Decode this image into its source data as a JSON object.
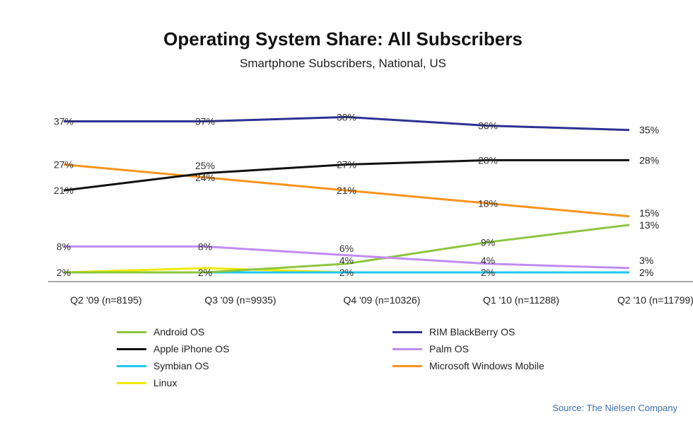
{
  "chart_data": {
    "type": "line",
    "title": "Operating System Share: All Subscribers",
    "subtitle": "Smartphone Subscribers, National, US",
    "categories": [
      "Q2 '09 (n=8195)",
      "Q3 '09 (n=9935)",
      "Q4 '09 (n=10326)",
      "Q1 '10 (n=11288)",
      "Q2 '10 (n=11799)"
    ],
    "ylim": [
      0,
      40
    ],
    "grid": false,
    "legend_position": "bottom",
    "series": [
      {
        "name": "Android OS",
        "color": "#8cc63f",
        "values": [
          2,
          2,
          4,
          9,
          13
        ],
        "labels": [
          false,
          false,
          true,
          true,
          true
        ]
      },
      {
        "name": "RIM BlackBerry OS",
        "color": "#2e3192",
        "values": [
          37,
          37,
          38,
          36,
          35
        ],
        "labels": [
          true,
          true,
          true,
          true,
          true
        ]
      },
      {
        "name": "Apple iPhone OS",
        "color": "#111111",
        "values": [
          21,
          25,
          27,
          28,
          28
        ],
        "labels": [
          true,
          true,
          true,
          true,
          true
        ]
      },
      {
        "name": "Palm OS",
        "color": "#c08cf0",
        "values": [
          8,
          8,
          6,
          4,
          3
        ],
        "labels": [
          true,
          true,
          true,
          true,
          true
        ]
      },
      {
        "name": "Symbian OS",
        "color": "#1ec8f0",
        "values": [
          2,
          2,
          2,
          2,
          2
        ],
        "labels": [
          true,
          true,
          true,
          true,
          true
        ]
      },
      {
        "name": "Microsoft Windows Mobile",
        "color": "#f7941d",
        "values": [
          27,
          24,
          21,
          18,
          15
        ],
        "labels": [
          true,
          true,
          true,
          true,
          true
        ]
      },
      {
        "name": "Linux",
        "color": "#f2ea00",
        "values": [
          2,
          3,
          2,
          2,
          2
        ],
        "labels": [
          false,
          false,
          false,
          false,
          false
        ]
      }
    ],
    "source": "Source: The Nielsen Company"
  }
}
